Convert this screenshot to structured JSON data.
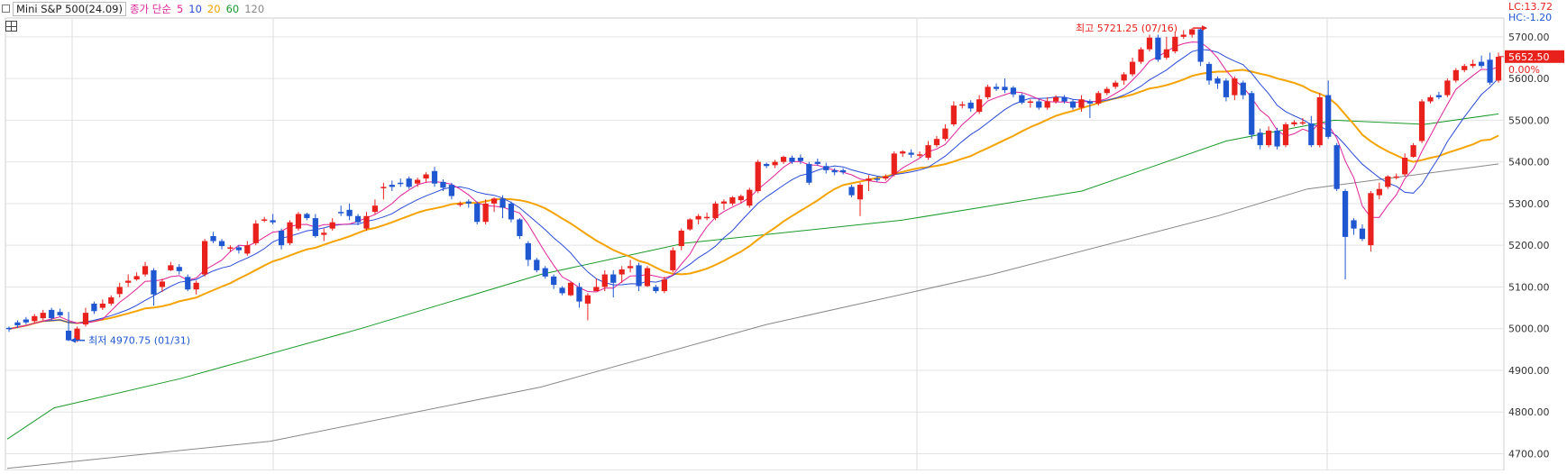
{
  "legend": {
    "title": "Mini S&P 500(24.09)",
    "ma_label": "종가 단순",
    "ma_periods": [
      "5",
      "10",
      "20",
      "60",
      "120"
    ],
    "ma_colors": [
      "#e0229a",
      "#2a4bd7",
      "#f5a300",
      "#1a9a2a",
      "#888888"
    ]
  },
  "right_info": {
    "lc": "LC:13.72",
    "hc": "HC:-1.20",
    "current_price": "5652.50",
    "change_pct": "0.00%"
  },
  "annotations": {
    "high": "최고 5721.25 (07/16)",
    "low": "최저 4970.75 (01/31)"
  },
  "chart_data": {
    "type": "candlestick",
    "y_axis_ticks": [
      "4700.00",
      "4800.00",
      "4900.00",
      "5000.00",
      "5100.00",
      "5200.00",
      "5300.00",
      "5400.00",
      "5500.00",
      "5600.00",
      "5700.00"
    ],
    "ylim": [
      4660,
      5745
    ],
    "up_color": "#e8211d",
    "down_color": "#1f57d1",
    "candles": [
      [
        5002,
        4999,
        4992,
        5005
      ],
      [
        5015,
        5008,
        5002,
        5020
      ],
      [
        5022,
        5015,
        5010,
        5028
      ],
      [
        5018,
        5030,
        5013,
        5035
      ],
      [
        5025,
        5038,
        5020,
        5045
      ],
      [
        5045,
        5025,
        5020,
        5050
      ],
      [
        5040,
        5032,
        5028,
        5048
      ],
      [
        4995,
        4972,
        4970,
        5040
      ],
      [
        4972,
        5000,
        4968,
        5005
      ],
      [
        5010,
        5038,
        5005,
        5050
      ],
      [
        5060,
        5042,
        5035,
        5065
      ],
      [
        5050,
        5060,
        5045,
        5070
      ],
      [
        5060,
        5075,
        5055,
        5080
      ],
      [
        5083,
        5100,
        5075,
        5110
      ],
      [
        5110,
        5115,
        5100,
        5130
      ],
      [
        5118,
        5126,
        5115,
        5135
      ],
      [
        5130,
        5150,
        5125,
        5160
      ],
      [
        5140,
        5082,
        5055,
        5145
      ],
      [
        5100,
        5113,
        5088,
        5120
      ],
      [
        5140,
        5152,
        5138,
        5160
      ],
      [
        5148,
        5138,
        5130,
        5155
      ],
      [
        5124,
        5094,
        5090,
        5130
      ],
      [
        5094,
        5110,
        5082,
        5115
      ],
      [
        5130,
        5210,
        5125,
        5215
      ],
      [
        5222,
        5210,
        5205,
        5232
      ],
      [
        5210,
        5198,
        5190,
        5215
      ],
      [
        5195,
        5195,
        5185,
        5200
      ],
      [
        5195,
        5188,
        5180,
        5200
      ],
      [
        5180,
        5200,
        5175,
        5210
      ],
      [
        5205,
        5252,
        5200,
        5260
      ],
      [
        5262,
        5262,
        5255,
        5268
      ],
      [
        5260,
        5255,
        5250,
        5275
      ],
      [
        5235,
        5200,
        5190,
        5240
      ],
      [
        5205,
        5255,
        5200,
        5260
      ],
      [
        5240,
        5275,
        5235,
        5280
      ],
      [
        5275,
        5265,
        5260,
        5278
      ],
      [
        5265,
        5222,
        5218,
        5275
      ],
      [
        5225,
        5230,
        5210,
        5240
      ],
      [
        5240,
        5255,
        5235,
        5265
      ],
      [
        5280,
        5278,
        5270,
        5295
      ],
      [
        5285,
        5270,
        5260,
        5300
      ],
      [
        5270,
        5255,
        5248,
        5275
      ],
      [
        5240,
        5270,
        5235,
        5280
      ],
      [
        5280,
        5295,
        5275,
        5310
      ],
      [
        5340,
        5340,
        5310,
        5350
      ],
      [
        5345,
        5340,
        5330,
        5355
      ],
      [
        5350,
        5348,
        5340,
        5360
      ],
      [
        5360,
        5340,
        5335,
        5365
      ],
      [
        5348,
        5357,
        5340,
        5362
      ],
      [
        5360,
        5370,
        5350,
        5375
      ],
      [
        5378,
        5348,
        5340,
        5388
      ],
      [
        5352,
        5338,
        5330,
        5358
      ],
      [
        5345,
        5318,
        5310,
        5350
      ],
      [
        5300,
        5300,
        5292,
        5305
      ],
      [
        5305,
        5300,
        5290,
        5310
      ],
      [
        5300,
        5256,
        5250,
        5305
      ],
      [
        5256,
        5300,
        5250,
        5310
      ],
      [
        5300,
        5312,
        5280,
        5315
      ],
      [
        5312,
        5290,
        5265,
        5320
      ],
      [
        5300,
        5262,
        5255,
        5305
      ],
      [
        5262,
        5222,
        5215,
        5265
      ],
      [
        5205,
        5165,
        5150,
        5210
      ],
      [
        5165,
        5140,
        5135,
        5170
      ],
      [
        5145,
        5125,
        5120,
        5150
      ],
      [
        5125,
        5105,
        5095,
        5130
      ],
      [
        5098,
        5085,
        5080,
        5102
      ],
      [
        5080,
        5110,
        5078,
        5112
      ],
      [
        5100,
        5065,
        5050,
        5110
      ],
      [
        5060,
        5080,
        5020,
        5085
      ],
      [
        5090,
        5100,
        5090,
        5120
      ],
      [
        5100,
        5130,
        5090,
        5140
      ],
      [
        5130,
        5110,
        5075,
        5140
      ],
      [
        5130,
        5142,
        5110,
        5150
      ],
      [
        5145,
        5150,
        5135,
        5165
      ],
      [
        5152,
        5102,
        5090,
        5158
      ],
      [
        5102,
        5145,
        5100,
        5150
      ],
      [
        5100,
        5090,
        5085,
        5105
      ],
      [
        5090,
        5118,
        5085,
        5125
      ],
      [
        5140,
        5188,
        5135,
        5195
      ],
      [
        5198,
        5235,
        5188,
        5240
      ],
      [
        5238,
        5262,
        5235,
        5265
      ],
      [
        5262,
        5270,
        5250,
        5275
      ],
      [
        5268,
        5268,
        5260,
        5278
      ],
      [
        5265,
        5300,
        5260,
        5305
      ],
      [
        5300,
        5305,
        5285,
        5310
      ],
      [
        5300,
        5315,
        5295,
        5318
      ],
      [
        5308,
        5318,
        5300,
        5322
      ],
      [
        5295,
        5333,
        5290,
        5338
      ],
      [
        5330,
        5400,
        5325,
        5405
      ],
      [
        5395,
        5390,
        5385,
        5398
      ],
      [
        5392,
        5400,
        5385,
        5405
      ],
      [
        5400,
        5412,
        5395,
        5415
      ],
      [
        5410,
        5400,
        5395,
        5415
      ],
      [
        5410,
        5402,
        5395,
        5418
      ],
      [
        5395,
        5350,
        5345,
        5400
      ],
      [
        5400,
        5395,
        5390,
        5408
      ],
      [
        5390,
        5380,
        5372,
        5398
      ],
      [
        5380,
        5375,
        5368,
        5385
      ],
      [
        5380,
        5375,
        5370,
        5385
      ],
      [
        5340,
        5320,
        5315,
        5345
      ],
      [
        5310,
        5345,
        5270,
        5350
      ],
      [
        5355,
        5360,
        5330,
        5368
      ],
      [
        5360,
        5358,
        5352,
        5365
      ],
      [
        5360,
        5365,
        5355,
        5370
      ],
      [
        5370,
        5420,
        5365,
        5425
      ],
      [
        5420,
        5425,
        5412,
        5428
      ],
      [
        5422,
        5417,
        5410,
        5430
      ],
      [
        5415,
        5418,
        5410,
        5425
      ],
      [
        5410,
        5440,
        5405,
        5450
      ],
      [
        5440,
        5455,
        5435,
        5462
      ],
      [
        5455,
        5480,
        5450,
        5490
      ],
      [
        5490,
        5535,
        5485,
        5545
      ],
      [
        5535,
        5538,
        5528,
        5545
      ],
      [
        5542,
        5528,
        5520,
        5548
      ],
      [
        5520,
        5550,
        5515,
        5560
      ],
      [
        5555,
        5580,
        5550,
        5585
      ],
      [
        5580,
        5575,
        5570,
        5588
      ],
      [
        5580,
        5572,
        5565,
        5600
      ],
      [
        5578,
        5562,
        5555,
        5582
      ],
      [
        5560,
        5542,
        5538,
        5565
      ],
      [
        5542,
        5545,
        5530,
        5550
      ],
      [
        5545,
        5530,
        5525,
        5550
      ],
      [
        5530,
        5545,
        5525,
        5555
      ],
      [
        5545,
        5555,
        5540,
        5560
      ],
      [
        5555,
        5545,
        5540,
        5560
      ],
      [
        5545,
        5530,
        5525,
        5550
      ],
      [
        5530,
        5550,
        5520,
        5560
      ],
      [
        5545,
        5540,
        5505,
        5550
      ],
      [
        5540,
        5565,
        5535,
        5570
      ],
      [
        5565,
        5575,
        5560,
        5580
      ],
      [
        5580,
        5590,
        5575,
        5595
      ],
      [
        5595,
        5610,
        5585,
        5615
      ],
      [
        5610,
        5640,
        5605,
        5650
      ],
      [
        5640,
        5670,
        5635,
        5675
      ],
      [
        5670,
        5698,
        5665,
        5705
      ],
      [
        5698,
        5645,
        5640,
        5705
      ],
      [
        5650,
        5670,
        5645,
        5700
      ],
      [
        5665,
        5700,
        5660,
        5712
      ],
      [
        5700,
        5705,
        5695,
        5716
      ],
      [
        5705,
        5718,
        5698,
        5721
      ],
      [
        5718,
        5640,
        5630,
        5721
      ],
      [
        5635,
        5595,
        5585,
        5640
      ],
      [
        5600,
        5588,
        5575,
        5605
      ],
      [
        5595,
        5555,
        5545,
        5600
      ],
      [
        5560,
        5600,
        5548,
        5605
      ],
      [
        5590,
        5560,
        5550,
        5595
      ],
      [
        5565,
        5465,
        5455,
        5570
      ],
      [
        5470,
        5440,
        5430,
        5480
      ],
      [
        5440,
        5475,
        5435,
        5485
      ],
      [
        5475,
        5437,
        5430,
        5482
      ],
      [
        5440,
        5490,
        5435,
        5495
      ],
      [
        5490,
        5495,
        5485,
        5500
      ],
      [
        5495,
        5495,
        5488,
        5505
      ],
      [
        5492,
        5440,
        5435,
        5510
      ],
      [
        5440,
        5555,
        5435,
        5565
      ],
      [
        5560,
        5460,
        5455,
        5595
      ],
      [
        5440,
        5335,
        5330,
        5445
      ],
      [
        5330,
        5220,
        5118,
        5335
      ],
      [
        5260,
        5240,
        5225,
        5265
      ],
      [
        5240,
        5215,
        5210,
        5250
      ],
      [
        5200,
        5325,
        5185,
        5330
      ],
      [
        5320,
        5335,
        5310,
        5350
      ],
      [
        5340,
        5365,
        5335,
        5368
      ],
      [
        5365,
        5365,
        5358,
        5372
      ],
      [
        5370,
        5410,
        5365,
        5420
      ],
      [
        5412,
        5440,
        5410,
        5445
      ],
      [
        5450,
        5545,
        5445,
        5550
      ],
      [
        5545,
        5555,
        5540,
        5560
      ],
      [
        5560,
        5555,
        5550,
        5568
      ],
      [
        5560,
        5595,
        5555,
        5600
      ],
      [
        5595,
        5620,
        5590,
        5625
      ],
      [
        5620,
        5630,
        5615,
        5635
      ],
      [
        5630,
        5635,
        5625,
        5645
      ],
      [
        5640,
        5630,
        5625,
        5655
      ],
      [
        5645,
        5590,
        5585,
        5662
      ],
      [
        5595,
        5652,
        5590,
        5662
      ]
    ],
    "ma5_points": [
      [
        4945,
        -1
      ],
      [
        4985,
        6
      ],
      [
        5012,
        10
      ],
      [
        5016,
        16
      ],
      [
        5026,
        22
      ],
      [
        5050,
        36
      ],
      [
        5090,
        50
      ],
      [
        5118,
        62
      ],
      [
        5145,
        70
      ],
      [
        5192,
        88
      ],
      [
        5210,
        96
      ],
      [
        5245,
        115
      ],
      [
        5262,
        135
      ],
      [
        5290,
        150
      ],
      [
        5318,
        168
      ],
      [
        5340,
        178
      ],
      [
        5360,
        186
      ],
      [
        5372,
        196
      ],
      [
        5390,
        201
      ],
      [
        5402,
        209
      ],
      [
        5380,
        220
      ],
      [
        5345,
        235
      ],
      [
        5300,
        250
      ],
      [
        5285,
        260
      ],
      [
        5260,
        270
      ],
      [
        5220,
        283
      ],
      [
        5160,
        293
      ],
      [
        5125,
        300
      ],
      [
        5090,
        306
      ],
      [
        5090,
        312
      ],
      [
        5112,
        320
      ],
      [
        5120,
        328
      ],
      [
        5103,
        338
      ],
      [
        5118,
        345
      ],
      [
        5200,
        356
      ],
      [
        5255,
        372
      ],
      [
        5285,
        382
      ],
      [
        5330,
        394
      ],
      [
        5380,
        402
      ],
      [
        5395,
        410
      ],
      [
        5395,
        420
      ],
      [
        5372,
        430
      ],
      [
        5360,
        440
      ],
      [
        5380,
        450
      ],
      [
        5420,
        462
      ],
      [
        5480,
        474
      ],
      [
        5540,
        484
      ],
      [
        5580,
        500
      ],
      [
        5580,
        512
      ],
      [
        5560,
        532
      ],
      [
        5545,
        545
      ],
      [
        5555,
        566
      ],
      [
        5620,
        580
      ],
      [
        5675,
        593
      ],
      [
        5695,
        600
      ],
      [
        5675,
        612
      ],
      [
        5605,
        622
      ],
      [
        5540,
        632
      ],
      [
        5490,
        642
      ],
      [
        5480,
        652
      ],
      [
        5460,
        662
      ],
      [
        5440,
        672
      ],
      [
        5320,
        680
      ],
      [
        5260,
        690
      ],
      [
        5278,
        700
      ],
      [
        5330,
        710
      ],
      [
        5390,
        722
      ],
      [
        5450,
        732
      ],
      [
        5515,
        742
      ],
      [
        5560,
        752
      ],
      [
        5620,
        766
      ],
      [
        5630,
        778
      ]
    ]
  }
}
